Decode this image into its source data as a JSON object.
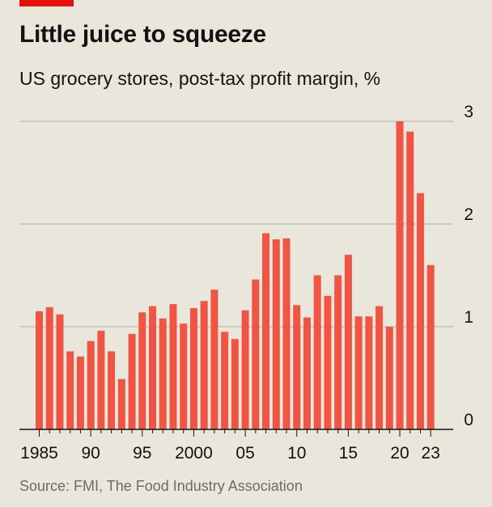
{
  "header": {
    "title": "Little juice to squeeze",
    "subtitle": "US grocery stores, post-tax profit margin, %"
  },
  "footer": {
    "source": "Source: FMI, The Food Industry Association"
  },
  "colors": {
    "bar": "#f05442",
    "accent": "#e3120b",
    "grid": "#b3b0a8",
    "axis": "#121212",
    "background": "#e9e6dc"
  },
  "chart_data": {
    "type": "bar",
    "title": "Little juice to squeeze",
    "subtitle": "US grocery stores, post-tax profit margin, %",
    "xlabel": "",
    "ylabel": "",
    "ylim": [
      0,
      3
    ],
    "yticks": [
      0,
      1,
      2,
      3
    ],
    "ytick_labels": [
      "0",
      "1",
      "2",
      "3"
    ],
    "grid": true,
    "legend": "none",
    "categories": [
      1985,
      1986,
      1987,
      1988,
      1989,
      1990,
      1991,
      1992,
      1993,
      1994,
      1995,
      1996,
      1997,
      1998,
      1999,
      2000,
      2001,
      2002,
      2003,
      2004,
      2005,
      2006,
      2007,
      2008,
      2009,
      2010,
      2011,
      2012,
      2013,
      2014,
      2015,
      2016,
      2017,
      2018,
      2019,
      2020,
      2021,
      2022,
      2023
    ],
    "values": [
      1.15,
      1.19,
      1.12,
      0.76,
      0.71,
      0.86,
      0.96,
      0.76,
      0.49,
      0.93,
      1.14,
      1.2,
      1.08,
      1.22,
      1.03,
      1.18,
      1.25,
      1.36,
      0.95,
      0.88,
      1.16,
      1.46,
      1.91,
      1.85,
      1.86,
      1.21,
      1.09,
      1.5,
      1.3,
      1.5,
      1.7,
      1.1,
      1.1,
      1.2,
      1.0,
      3.0,
      2.9,
      2.3,
      1.6
    ],
    "xtick_years": [
      1985,
      1990,
      1995,
      2000,
      2005,
      2010,
      2015,
      2020,
      2023
    ],
    "xtick_labels": [
      "1985",
      "90",
      "95",
      "2000",
      "05",
      "10",
      "15",
      "20",
      "23"
    ]
  }
}
